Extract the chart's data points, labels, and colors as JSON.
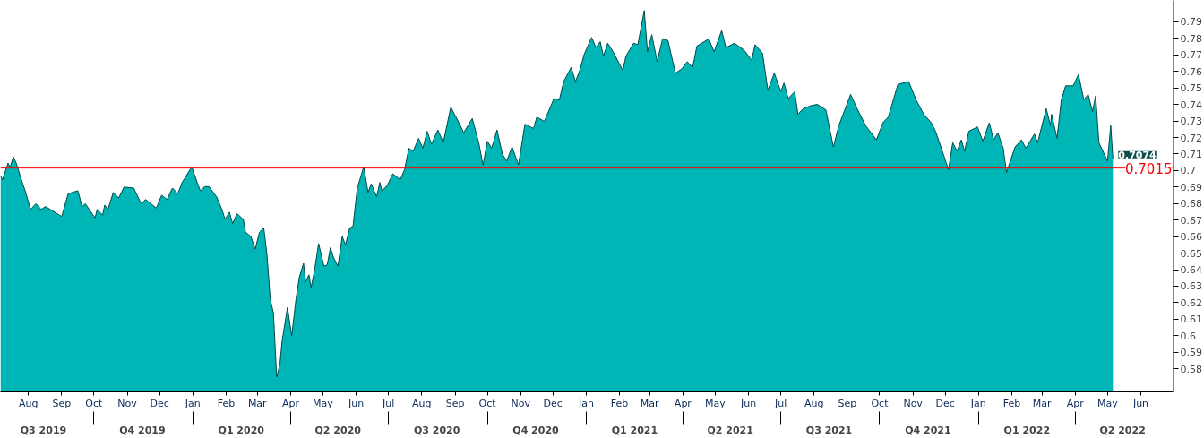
{
  "chart_data": {
    "type": "area",
    "x": [
      "2019-07-06",
      "2019-07-08",
      "2019-07-13",
      "2019-07-15",
      "2019-07-18",
      "2019-07-21",
      "2019-07-25",
      "2019-07-29",
      "2019-08-03",
      "2019-08-08",
      "2019-08-13",
      "2019-08-17",
      "2019-09-01",
      "2019-09-07",
      "2019-09-16",
      "2019-09-20",
      "2019-09-23",
      "2019-10-02",
      "2019-10-04",
      "2019-10-09",
      "2019-10-11",
      "2019-10-14",
      "2019-10-19",
      "2019-10-24",
      "2019-10-29",
      "2019-11-07",
      "2019-11-14",
      "2019-11-18",
      "2019-11-28",
      "2019-12-03",
      "2019-12-08",
      "2019-12-13",
      "2019-12-18",
      "2019-12-22",
      "2019-12-31",
      "2020-01-05",
      "2020-01-08",
      "2020-01-12",
      "2020-01-16",
      "2020-01-23",
      "2020-01-28",
      "2020-01-31",
      "2020-02-04",
      "2020-02-07",
      "2020-02-11",
      "2020-02-17",
      "2020-02-19",
      "2020-02-24",
      "2020-02-28",
      "2020-03-03",
      "2020-03-07",
      "2020-03-10",
      "2020-03-13",
      "2020-03-16",
      "2020-03-19",
      "2020-03-22",
      "2020-03-24",
      "2020-03-29",
      "2020-04-02",
      "2020-04-06",
      "2020-04-09",
      "2020-04-13",
      "2020-04-15",
      "2020-04-18",
      "2020-04-20",
      "2020-04-23",
      "2020-04-27",
      "2020-05-02",
      "2020-05-05",
      "2020-05-08",
      "2020-05-11",
      "2020-05-15",
      "2020-05-19",
      "2020-05-22",
      "2020-05-26",
      "2020-05-29",
      "2020-06-02",
      "2020-06-08",
      "2020-06-12",
      "2020-06-15",
      "2020-06-20",
      "2020-06-23",
      "2020-06-25",
      "2020-06-30",
      "2020-07-05",
      "2020-07-12",
      "2020-07-16",
      "2020-07-20",
      "2020-07-24",
      "2020-07-29",
      "2020-08-02",
      "2020-08-06",
      "2020-08-10",
      "2020-08-16",
      "2020-08-21",
      "2020-08-28",
      "2020-09-06",
      "2020-09-09",
      "2020-09-17",
      "2020-09-23",
      "2020-09-27",
      "2020-10-01",
      "2020-10-05",
      "2020-10-10",
      "2020-10-15",
      "2020-10-19",
      "2020-10-24",
      "2020-10-30",
      "2020-11-05",
      "2020-11-13",
      "2020-11-16",
      "2020-11-23",
      "2020-12-02",
      "2020-12-07",
      "2020-12-11",
      "2020-12-18",
      "2020-12-22",
      "2020-12-26",
      "2020-12-30",
      "2021-01-06",
      "2021-01-10",
      "2021-01-14",
      "2021-01-17",
      "2021-01-21",
      "2021-01-26",
      "2021-02-04",
      "2021-02-07",
      "2021-02-14",
      "2021-02-18",
      "2021-02-24",
      "2021-02-27",
      "2021-03-03",
      "2021-03-08",
      "2021-03-13",
      "2021-03-18",
      "2021-03-25",
      "2021-03-31",
      "2021-04-05",
      "2021-04-10",
      "2021-04-14",
      "2021-04-25",
      "2021-04-30",
      "2021-05-07",
      "2021-05-11",
      "2021-05-19",
      "2021-05-28",
      "2021-06-04",
      "2021-06-07",
      "2021-06-14",
      "2021-06-19",
      "2021-06-25",
      "2021-07-01",
      "2021-07-04",
      "2021-07-08",
      "2021-07-14",
      "2021-07-17",
      "2021-07-22",
      "2021-07-29",
      "2021-08-04",
      "2021-08-12",
      "2021-08-19",
      "2021-08-24",
      "2021-09-04",
      "2021-09-10",
      "2021-09-18",
      "2021-09-28",
      "2021-10-04",
      "2021-10-09",
      "2021-10-18",
      "2021-10-28",
      "2021-11-04",
      "2021-11-11",
      "2021-11-18",
      "2021-11-22",
      "2021-11-27",
      "2021-12-04",
      "2021-12-08",
      "2021-12-12",
      "2021-12-16",
      "2021-12-19",
      "2021-12-23",
      "2021-12-31",
      "2022-01-05",
      "2022-01-11",
      "2022-01-15",
      "2022-01-19",
      "2022-01-24",
      "2022-01-27",
      "2022-02-04",
      "2022-02-10",
      "2022-02-14",
      "2022-02-22",
      "2022-02-25",
      "2022-03-05",
      "2022-03-09",
      "2022-03-10",
      "2022-03-15",
      "2022-03-19",
      "2022-03-23",
      "2022-03-30",
      "2022-04-04",
      "2022-04-09",
      "2022-04-13",
      "2022-04-17",
      "2022-04-20",
      "2022-04-23",
      "2022-05-01",
      "2022-05-04",
      "2022-05-06"
    ],
    "series": [
      {
        "color": "#00b5b5",
        "values": [
          0.6971,
          0.6945,
          0.7045,
          0.702,
          0.7083,
          0.704,
          0.6954,
          0.6878,
          0.6765,
          0.6799,
          0.6765,
          0.6782,
          0.6722,
          0.686,
          0.6878,
          0.6782,
          0.6799,
          0.6713,
          0.6765,
          0.673,
          0.6791,
          0.6765,
          0.6868,
          0.6834,
          0.69,
          0.6894,
          0.6799,
          0.6825,
          0.6773,
          0.6851,
          0.6825,
          0.6894,
          0.686,
          0.6928,
          0.7023,
          0.6928,
          0.6877,
          0.6903,
          0.6903,
          0.6842,
          0.6765,
          0.6704,
          0.6748,
          0.6679,
          0.6739,
          0.6704,
          0.6627,
          0.6601,
          0.6524,
          0.6627,
          0.6653,
          0.649,
          0.6223,
          0.6137,
          0.575,
          0.5827,
          0.5965,
          0.6171,
          0.6,
          0.6223,
          0.6352,
          0.6438,
          0.6326,
          0.6369,
          0.6292,
          0.6387,
          0.6558,
          0.6421,
          0.6429,
          0.6533,
          0.6472,
          0.6421,
          0.6601,
          0.655,
          0.6653,
          0.6662,
          0.6894,
          0.7023,
          0.6868,
          0.692,
          0.6842,
          0.6928,
          0.6877,
          0.6911,
          0.698,
          0.6945,
          0.7006,
          0.7135,
          0.7117,
          0.7195,
          0.7135,
          0.7238,
          0.716,
          0.7246,
          0.7169,
          0.7384,
          0.7272,
          0.7229,
          0.7315,
          0.7169,
          0.7032,
          0.7178,
          0.7135,
          0.7246,
          0.71,
          0.7058,
          0.7143,
          0.7035,
          0.7281,
          0.7255,
          0.7324,
          0.7298,
          0.7436,
          0.7427,
          0.7539,
          0.7625,
          0.7539,
          0.7607,
          0.7702,
          0.7806,
          0.7745,
          0.778,
          0.7694,
          0.7771,
          0.7719,
          0.7607,
          0.7694,
          0.7771,
          0.7762,
          0.7969,
          0.7719,
          0.7823,
          0.7659,
          0.7797,
          0.7788,
          0.759,
          0.7616,
          0.7659,
          0.7625,
          0.7754,
          0.7797,
          0.7719,
          0.7848,
          0.7745,
          0.7771,
          0.7728,
          0.7668,
          0.7762,
          0.7711,
          0.7487,
          0.759,
          0.7478,
          0.753,
          0.7436,
          0.7478,
          0.7341,
          0.7375,
          0.7393,
          0.7401,
          0.7367,
          0.7143,
          0.7272,
          0.7461,
          0.7375,
          0.7272,
          0.7186,
          0.729,
          0.7324,
          0.7522,
          0.7539,
          0.7427,
          0.7341,
          0.729,
          0.7238,
          0.7143,
          0.7006,
          0.7169,
          0.7117,
          0.7186,
          0.7117,
          0.7238,
          0.7264,
          0.7178,
          0.729,
          0.7186,
          0.7229,
          0.7135,
          0.6988,
          0.7143,
          0.7186,
          0.7135,
          0.7221,
          0.7169,
          0.7375,
          0.7272,
          0.7341,
          0.7195,
          0.7427,
          0.7513,
          0.7513,
          0.7582,
          0.7427,
          0.7461,
          0.7358,
          0.7453,
          0.7169,
          0.7058,
          0.7272,
          0.7074
        ]
      }
    ],
    "xlim": [
      "2019-07-06",
      "2022-07-01"
    ],
    "ylim": [
      0.566,
      0.803
    ],
    "yticks": [
      0.58,
      0.59,
      0.6,
      0.61,
      0.62,
      0.63,
      0.64,
      0.65,
      0.66,
      0.67,
      0.68,
      0.69,
      0.7,
      0.71,
      0.72,
      0.73,
      0.74,
      0.75,
      0.76,
      0.77,
      0.78,
      0.79
    ],
    "xticks": [
      {
        "value": "2019-08-01",
        "label": "Aug"
      },
      {
        "value": "2019-09-01",
        "label": "Sep"
      },
      {
        "value": "2019-10-01",
        "label": "Oct"
      },
      {
        "value": "2019-11-01",
        "label": "Nov"
      },
      {
        "value": "2019-12-01",
        "label": "Dec"
      },
      {
        "value": "2020-01-01",
        "label": "Jan"
      },
      {
        "value": "2020-02-01",
        "label": "Feb"
      },
      {
        "value": "2020-03-01",
        "label": "Mar"
      },
      {
        "value": "2020-04-01",
        "label": "Apr"
      },
      {
        "value": "2020-05-01",
        "label": "May"
      },
      {
        "value": "2020-06-01",
        "label": "Jun"
      },
      {
        "value": "2020-07-01",
        "label": "Jul"
      },
      {
        "value": "2020-08-01",
        "label": "Aug"
      },
      {
        "value": "2020-09-01",
        "label": "Sep"
      },
      {
        "value": "2020-10-01",
        "label": "Oct"
      },
      {
        "value": "2020-11-01",
        "label": "Nov"
      },
      {
        "value": "2020-12-01",
        "label": "Dec"
      },
      {
        "value": "2021-01-01",
        "label": "Jan"
      },
      {
        "value": "2021-02-01",
        "label": "Feb"
      },
      {
        "value": "2021-03-01",
        "label": "Mar"
      },
      {
        "value": "2021-04-01",
        "label": "Apr"
      },
      {
        "value": "2021-05-01",
        "label": "May"
      },
      {
        "value": "2021-06-01",
        "label": "Jun"
      },
      {
        "value": "2021-07-01",
        "label": "Jul"
      },
      {
        "value": "2021-08-01",
        "label": "Aug"
      },
      {
        "value": "2021-09-01",
        "label": "Sep"
      },
      {
        "value": "2021-10-01",
        "label": "Oct"
      },
      {
        "value": "2021-11-01",
        "label": "Nov"
      },
      {
        "value": "2021-12-01",
        "label": "Dec"
      },
      {
        "value": "2022-01-01",
        "label": "Jan"
      },
      {
        "value": "2022-02-01",
        "label": "Feb"
      },
      {
        "value": "2022-03-01",
        "label": "Mar"
      },
      {
        "value": "2022-04-01",
        "label": "Apr"
      },
      {
        "value": "2022-05-01",
        "label": "May"
      },
      {
        "value": "2022-06-01",
        "label": "Jun"
      }
    ],
    "x2lim": [
      "2019-07-06",
      "2022-07-01"
    ],
    "x2ticks": [
      {
        "value": "2019-08-15",
        "label": "Q3 2019"
      },
      {
        "value": "2019-10-01",
        "label": null
      },
      {
        "value": "2019-11-15",
        "label": "Q4 2019"
      },
      {
        "value": "2020-01-01",
        "label": null
      },
      {
        "value": "2020-02-15",
        "label": "Q1 2020"
      },
      {
        "value": "2020-04-01",
        "label": null
      },
      {
        "value": "2020-05-15",
        "label": "Q2 2020"
      },
      {
        "value": "2020-07-01",
        "label": null
      },
      {
        "value": "2020-08-15",
        "label": "Q3 2020"
      },
      {
        "value": "2020-10-01",
        "label": null
      },
      {
        "value": "2020-11-15",
        "label": "Q4 2020"
      },
      {
        "value": "2021-01-01",
        "label": null
      },
      {
        "value": "2021-02-15",
        "label": "Q1 2021"
      },
      {
        "value": "2021-04-01",
        "label": null
      },
      {
        "value": "2021-05-15",
        "label": "Q2 2021"
      },
      {
        "value": "2021-07-01",
        "label": null
      },
      {
        "value": "2021-08-15",
        "label": "Q3 2021"
      },
      {
        "value": "2021-10-01",
        "label": null
      },
      {
        "value": "2021-11-15",
        "label": "Q4 2021"
      },
      {
        "value": "2022-01-01",
        "label": null
      },
      {
        "value": "2022-02-15",
        "label": "Q1 2022"
      },
      {
        "value": "2022-04-01",
        "label": null
      },
      {
        "value": "2022-05-15",
        "label": "Q2 2022"
      }
    ],
    "ref_lines": [
      {
        "axis": "y",
        "value": 0.7015,
        "label": "0.7015",
        "color": "#ff0000"
      }
    ],
    "annotations": [
      {
        "text": "0.7074",
        "x": "2022-05-06",
        "y": 0.7074
      }
    ],
    "grid": false
  }
}
